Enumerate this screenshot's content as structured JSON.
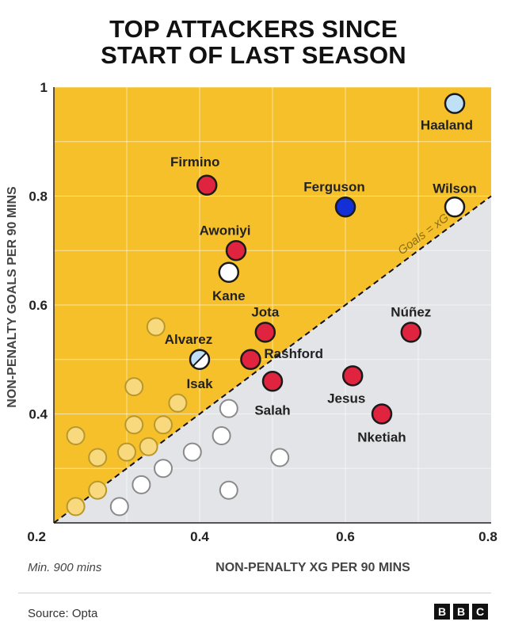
{
  "title": {
    "line1": "TOP ATTACKERS SINCE",
    "line2": "START OF LAST SEASON"
  },
  "note": "Min. 900 mins",
  "source": "Source: Opta",
  "logo": [
    "B",
    "B",
    "C"
  ],
  "colors": {
    "above_region": "#F6C02B",
    "below_region": "#E3E4E8",
    "highlight_player": "#E0233E",
    "grey_point_stroke": "#8A8A8A",
    "yellow_point_fill": "#F8D97E",
    "yellow_point_stroke": "#B8982C",
    "ferguson": "#1230D6",
    "haaland": "#BFE0F7",
    "white_point": "#FFFFFF",
    "point_outline": "#1A1A1A"
  },
  "chart_data": {
    "type": "scatter",
    "xlabel": "NON-PENALTY XG PER 90 MINS",
    "ylabel": "NON-PENALTY GOALS PER 90 MINS",
    "xlim": [
      0.2,
      0.8
    ],
    "ylim": [
      0.2,
      1.0
    ],
    "x_ticks": [
      0.2,
      0.4,
      0.6,
      0.8
    ],
    "y_ticks": [
      0.2,
      0.4,
      0.6,
      0.8,
      1.0
    ],
    "x_tick_labels": [
      "0.2",
      "0.4",
      "0.6",
      "0.8"
    ],
    "y_tick_labels": [
      "0.2",
      "0.4",
      "0.6",
      "0.8",
      "1"
    ],
    "grid": true,
    "reference_line": {
      "label": "Goals = xG",
      "slope": 1,
      "intercept": 0
    },
    "labelled_players": [
      {
        "name": "Haaland",
        "x": 0.75,
        "y": 0.97,
        "style": "light-blue"
      },
      {
        "name": "Firmino",
        "x": 0.41,
        "y": 0.82,
        "style": "red"
      },
      {
        "name": "Ferguson",
        "x": 0.6,
        "y": 0.78,
        "style": "blue"
      },
      {
        "name": "Wilson",
        "x": 0.75,
        "y": 0.78,
        "style": "white"
      },
      {
        "name": "Awoniyi",
        "x": 0.45,
        "y": 0.7,
        "style": "red"
      },
      {
        "name": "Kane",
        "x": 0.44,
        "y": 0.66,
        "style": "white"
      },
      {
        "name": "Jota",
        "x": 0.49,
        "y": 0.55,
        "style": "red"
      },
      {
        "name": "Núñez",
        "x": 0.69,
        "y": 0.55,
        "style": "red"
      },
      {
        "name": "Alvarez",
        "x": 0.4,
        "y": 0.5,
        "style": "split"
      },
      {
        "name": "Isak",
        "x": 0.4,
        "y": 0.5,
        "style": "split"
      },
      {
        "name": "Rashford",
        "x": 0.47,
        "y": 0.5,
        "style": "red"
      },
      {
        "name": "Salah",
        "x": 0.5,
        "y": 0.46,
        "style": "red"
      },
      {
        "name": "Jesus",
        "x": 0.61,
        "y": 0.47,
        "style": "red"
      },
      {
        "name": "Nketiah",
        "x": 0.65,
        "y": 0.4,
        "style": "red"
      }
    ],
    "other_players_above": [
      {
        "x": 0.34,
        "y": 0.56
      },
      {
        "x": 0.31,
        "y": 0.45
      },
      {
        "x": 0.37,
        "y": 0.42
      },
      {
        "x": 0.23,
        "y": 0.36
      },
      {
        "x": 0.31,
        "y": 0.38
      },
      {
        "x": 0.35,
        "y": 0.38
      },
      {
        "x": 0.26,
        "y": 0.32
      },
      {
        "x": 0.3,
        "y": 0.33
      },
      {
        "x": 0.33,
        "y": 0.34
      },
      {
        "x": 0.26,
        "y": 0.26
      },
      {
        "x": 0.23,
        "y": 0.23
      }
    ],
    "other_players_below": [
      {
        "x": 0.44,
        "y": 0.41
      },
      {
        "x": 0.43,
        "y": 0.36
      },
      {
        "x": 0.39,
        "y": 0.33
      },
      {
        "x": 0.51,
        "y": 0.32
      },
      {
        "x": 0.35,
        "y": 0.3
      },
      {
        "x": 0.32,
        "y": 0.27
      },
      {
        "x": 0.44,
        "y": 0.26
      },
      {
        "x": 0.29,
        "y": 0.23
      }
    ]
  }
}
